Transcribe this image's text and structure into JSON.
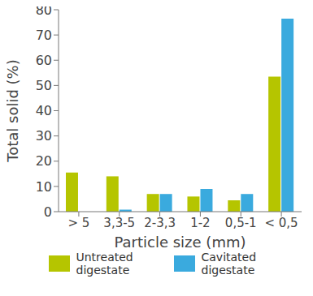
{
  "chart_data": {
    "type": "bar",
    "categories": [
      "> 5",
      "3,3-5",
      "2-3,3",
      "1-2",
      "0,5-1",
      "< 0,5"
    ],
    "series": [
      {
        "name": "Untreated digestate",
        "color": "#b5c500",
        "values": [
          15.5,
          14,
          7,
          6,
          4.5,
          53.5
        ]
      },
      {
        "name": "Cavitated digestate",
        "color": "#3aaade",
        "values": [
          0,
          0.8,
          7,
          9,
          7,
          76.5
        ]
      }
    ],
    "x_label": "Particle size (mm)",
    "y_label": "Total solid (%)",
    "ylim": [
      0,
      80
    ],
    "yticks": [
      0,
      10,
      20,
      30,
      40,
      50,
      60,
      70,
      80
    ],
    "grid": false,
    "legend": "bottom"
  }
}
